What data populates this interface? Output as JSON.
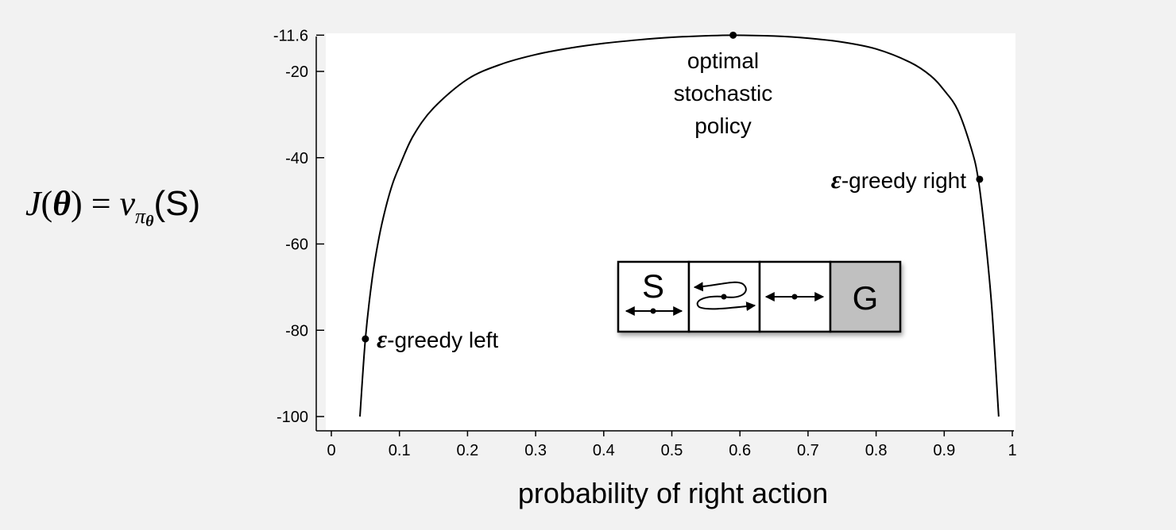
{
  "chart_data": {
    "type": "line",
    "xlabel": "probability of right action",
    "ylabel": {
      "J": "J",
      "theta": "θ",
      "eq": " = ",
      "v": "v",
      "pi": "π",
      "sub_theta": "θ",
      "state": "(S)",
      "open": "(",
      "close": ")"
    },
    "xlim": [
      0,
      1
    ],
    "ylim": [
      -100,
      -11.6
    ],
    "x_ticks": [
      0,
      0.1,
      0.2,
      0.3,
      0.4,
      0.5,
      0.6,
      0.7,
      0.8,
      0.9,
      1
    ],
    "x_tick_labels": [
      "0",
      "0.1",
      "0.2",
      "0.3",
      "0.4",
      "0.5",
      "0.6",
      "0.7",
      "0.8",
      "0.9",
      "1"
    ],
    "y_ticks": [
      -11.6,
      -20,
      -40,
      -60,
      -80,
      -100
    ],
    "y_tick_labels": [
      "-11.6",
      "-20",
      "-40",
      "-60",
      "-80",
      "-100"
    ],
    "grid": false,
    "series": [
      {
        "x": [
          0.042,
          0.05,
          0.06,
          0.07,
          0.08,
          0.09,
          0.1,
          0.12,
          0.15,
          0.2,
          0.25,
          0.3,
          0.35,
          0.4,
          0.45,
          0.5,
          0.55,
          0.59,
          0.65,
          0.7,
          0.75,
          0.8,
          0.85,
          0.88,
          0.9,
          0.92,
          0.94,
          0.95,
          0.96,
          0.97,
          0.98
        ],
        "y": [
          -100,
          -82,
          -68,
          -58.5,
          -51.5,
          -46,
          -42,
          -35,
          -28.5,
          -21.8,
          -18.3,
          -16.1,
          -14.6,
          -13.5,
          -12.7,
          -12.1,
          -11.75,
          -11.6,
          -11.8,
          -12.3,
          -13.2,
          -14.8,
          -17.9,
          -21.0,
          -24.4,
          -29.0,
          -38.0,
          -45.0,
          -58.0,
          -75.0,
          -100
        ]
      }
    ],
    "annotations": [
      {
        "x": 0.05,
        "y": -82,
        "prefix": "ε",
        "text": "-greedy left"
      },
      {
        "x": 0.59,
        "y": -11.6,
        "lines": [
          "optimal",
          "stochastic",
          "policy"
        ]
      },
      {
        "x": 0.952,
        "y": -45,
        "prefix": "ε",
        "text": "-greedy right"
      }
    ],
    "inset": {
      "cells": [
        {
          "label": "S",
          "shaded": false
        },
        {
          "label": "",
          "shaded": false
        },
        {
          "label": "",
          "shaded": false
        },
        {
          "label": "G",
          "shaded": true
        }
      ]
    }
  }
}
